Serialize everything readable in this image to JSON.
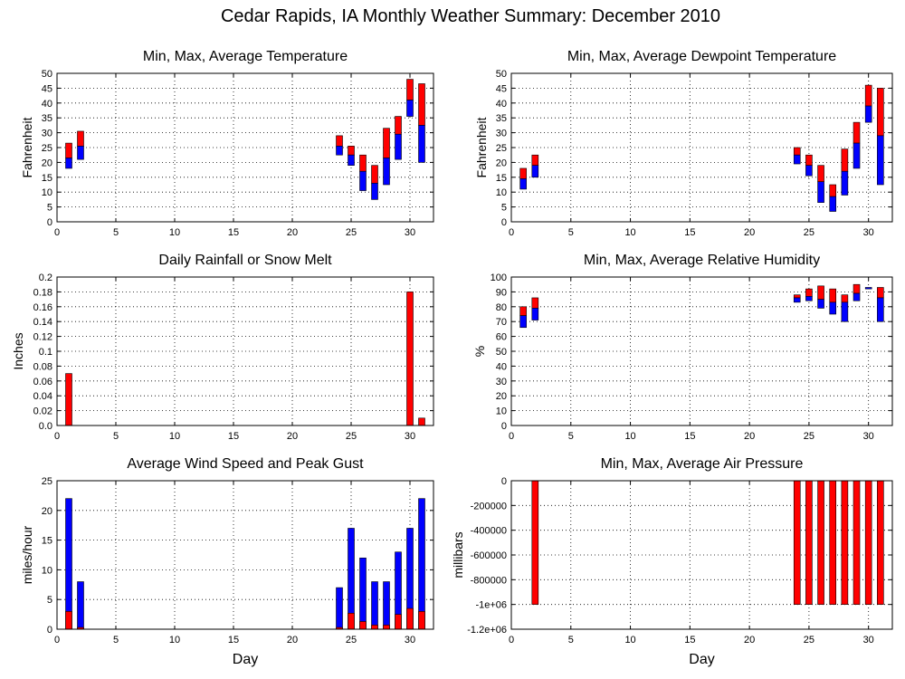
{
  "page_title": "Cedar Rapids, IA Monthly Weather Summary: December 2010",
  "colors": {
    "max_bar": "#ff0000",
    "min_bar": "#0000ff",
    "avg_bar": "#0000ff"
  },
  "chart_data": [
    {
      "id": "temp",
      "type": "bar",
      "subtype": "range",
      "title": "Min, Max, Average Temperature",
      "xlabel": "",
      "ylabel": "Fahrenheit",
      "xlim": [
        0,
        32
      ],
      "ylim": [
        0,
        50
      ],
      "xticks": [
        0,
        5,
        10,
        15,
        20,
        25,
        30
      ],
      "yticks": [
        0,
        5,
        10,
        15,
        20,
        25,
        30,
        35,
        40,
        45,
        50
      ],
      "grid": true,
      "points": [
        {
          "day": 1,
          "min": 18,
          "avg": 21.5,
          "max": 26.5
        },
        {
          "day": 2,
          "min": 21,
          "avg": 25.5,
          "max": 30.5
        },
        {
          "day": 24,
          "min": 22.5,
          "avg": 25.5,
          "max": 29
        },
        {
          "day": 25,
          "min": 19,
          "avg": 22.5,
          "max": 25.5
        },
        {
          "day": 26,
          "min": 10.5,
          "avg": 17,
          "max": 22.5
        },
        {
          "day": 27,
          "min": 7.5,
          "avg": 13,
          "max": 19
        },
        {
          "day": 28,
          "min": 12.5,
          "avg": 21.5,
          "max": 31.5
        },
        {
          "day": 29,
          "min": 21,
          "avg": 29.5,
          "max": 35.5
        },
        {
          "day": 30,
          "min": 35.5,
          "avg": 41,
          "max": 48
        },
        {
          "day": 31,
          "min": 20,
          "avg": 32.5,
          "max": 46.5
        }
      ]
    },
    {
      "id": "dew",
      "type": "bar",
      "subtype": "range",
      "title": "Min, Max, Average Dewpoint Temperature",
      "xlabel": "",
      "ylabel": "Fahrenheit",
      "xlim": [
        0,
        32
      ],
      "ylim": [
        0,
        50
      ],
      "xticks": [
        0,
        5,
        10,
        15,
        20,
        25,
        30
      ],
      "yticks": [
        0,
        5,
        10,
        15,
        20,
        25,
        30,
        35,
        40,
        45,
        50
      ],
      "grid": true,
      "points": [
        {
          "day": 1,
          "min": 11,
          "avg": 14.5,
          "max": 18
        },
        {
          "day": 2,
          "min": 15,
          "avg": 19,
          "max": 22.5
        },
        {
          "day": 24,
          "min": 19.5,
          "avg": 22.5,
          "max": 25
        },
        {
          "day": 25,
          "min": 15.5,
          "avg": 19,
          "max": 22.5
        },
        {
          "day": 26,
          "min": 6.5,
          "avg": 13.5,
          "max": 19
        },
        {
          "day": 27,
          "min": 3.5,
          "avg": 8.5,
          "max": 12.5
        },
        {
          "day": 28,
          "min": 9,
          "avg": 17,
          "max": 24.5
        },
        {
          "day": 29,
          "min": 18,
          "avg": 26.5,
          "max": 33.5
        },
        {
          "day": 30,
          "min": 33.5,
          "avg": 39,
          "max": 46
        },
        {
          "day": 31,
          "min": 12.5,
          "avg": 29,
          "max": 45
        }
      ]
    },
    {
      "id": "rain",
      "type": "bar",
      "title": "Daily Rainfall or Snow Melt",
      "xlabel": "",
      "ylabel": "Inches",
      "xlim": [
        0,
        32
      ],
      "ylim": [
        0,
        0.2
      ],
      "xticks": [
        0,
        5,
        10,
        15,
        20,
        25,
        30
      ],
      "yticks": [
        0,
        0.02,
        0.04,
        0.06,
        0.08,
        0.1,
        0.12,
        0.14,
        0.16,
        0.18,
        0.2
      ],
      "ytick_labels": [
        "0.0",
        "0.02",
        "0.04",
        "0.06",
        "0.08",
        "0.1",
        "0.12",
        "0.14",
        "0.16",
        "0.18",
        "0.2"
      ],
      "grid": true,
      "points": [
        {
          "day": 1,
          "value": 0.07
        },
        {
          "day": 30,
          "value": 0.18
        },
        {
          "day": 31,
          "value": 0.01
        }
      ]
    },
    {
      "id": "rh",
      "type": "bar",
      "subtype": "range",
      "title": "Min, Max, Average Relative Humidity",
      "xlabel": "",
      "ylabel": "%",
      "xlim": [
        0,
        32
      ],
      "ylim": [
        0,
        100
      ],
      "xticks": [
        0,
        5,
        10,
        15,
        20,
        25,
        30
      ],
      "yticks": [
        0,
        10,
        20,
        30,
        40,
        50,
        60,
        70,
        80,
        90,
        100
      ],
      "grid": true,
      "points": [
        {
          "day": 1,
          "min": 66,
          "avg": 74,
          "max": 80
        },
        {
          "day": 2,
          "min": 71,
          "avg": 79,
          "max": 86
        },
        {
          "day": 24,
          "min": 83,
          "avg": 86,
          "max": 88
        },
        {
          "day": 25,
          "min": 84,
          "avg": 87,
          "max": 92
        },
        {
          "day": 26,
          "min": 79,
          "avg": 85,
          "max": 94
        },
        {
          "day": 27,
          "min": 75,
          "avg": 83,
          "max": 92
        },
        {
          "day": 28,
          "min": 70,
          "avg": 83,
          "max": 88
        },
        {
          "day": 29,
          "min": 84,
          "avg": 89,
          "max": 95
        },
        {
          "day": 30,
          "min": 92,
          "avg": 93,
          "max": 93
        },
        {
          "day": 31,
          "min": 70,
          "avg": 86,
          "max": 93
        }
      ]
    },
    {
      "id": "wind",
      "type": "bar",
      "title": "Average Wind Speed and Peak Gust",
      "xlabel": "Day",
      "ylabel": "miles/hour",
      "xlim": [
        0,
        32
      ],
      "ylim": [
        0,
        25
      ],
      "xticks": [
        0,
        5,
        10,
        15,
        20,
        25,
        30
      ],
      "yticks": [
        0,
        5,
        10,
        15,
        20,
        25
      ],
      "grid": true,
      "points": [
        {
          "day": 1,
          "avg": 3,
          "gust": 22
        },
        {
          "day": 2,
          "avg": 0.3,
          "gust": 8
        },
        {
          "day": 24,
          "avg": 0.3,
          "gust": 7
        },
        {
          "day": 25,
          "avg": 2.7,
          "gust": 17
        },
        {
          "day": 26,
          "avg": 1.3,
          "gust": 12
        },
        {
          "day": 27,
          "avg": 0.7,
          "gust": 8
        },
        {
          "day": 28,
          "avg": 0.7,
          "gust": 8
        },
        {
          "day": 29,
          "avg": 2.5,
          "gust": 13
        },
        {
          "day": 30,
          "avg": 3.5,
          "gust": 17
        },
        {
          "day": 31,
          "avg": 3,
          "gust": 22
        }
      ]
    },
    {
      "id": "pres",
      "type": "bar",
      "title": "Min, Max, Average Air Pressure",
      "xlabel": "Day",
      "ylabel": "millibars",
      "xlim": [
        0,
        32
      ],
      "ylim": [
        -1200000,
        0
      ],
      "xticks": [
        0,
        5,
        10,
        15,
        20,
        25,
        30
      ],
      "yticks": [
        0,
        -200000,
        -400000,
        -600000,
        -800000,
        -1000000,
        -1200000
      ],
      "ytick_labels": [
        "0",
        "-200000",
        "-400000",
        "-600000",
        "-800000",
        "-1e+06",
        "-1.2e+06"
      ],
      "grid": true,
      "points": [
        {
          "day": 2,
          "min": -1000000,
          "max": 0
        },
        {
          "day": 24,
          "min": -1000000,
          "max": 0
        },
        {
          "day": 25,
          "min": -1000000,
          "max": 0
        },
        {
          "day": 26,
          "min": -1000000,
          "max": 0
        },
        {
          "day": 27,
          "min": -1000000,
          "max": 0
        },
        {
          "day": 28,
          "min": -1000000,
          "max": 0
        },
        {
          "day": 29,
          "min": -1000000,
          "max": 0
        },
        {
          "day": 30,
          "min": -1000000,
          "max": 0
        },
        {
          "day": 31,
          "min": -1000000,
          "max": 0
        }
      ]
    }
  ]
}
